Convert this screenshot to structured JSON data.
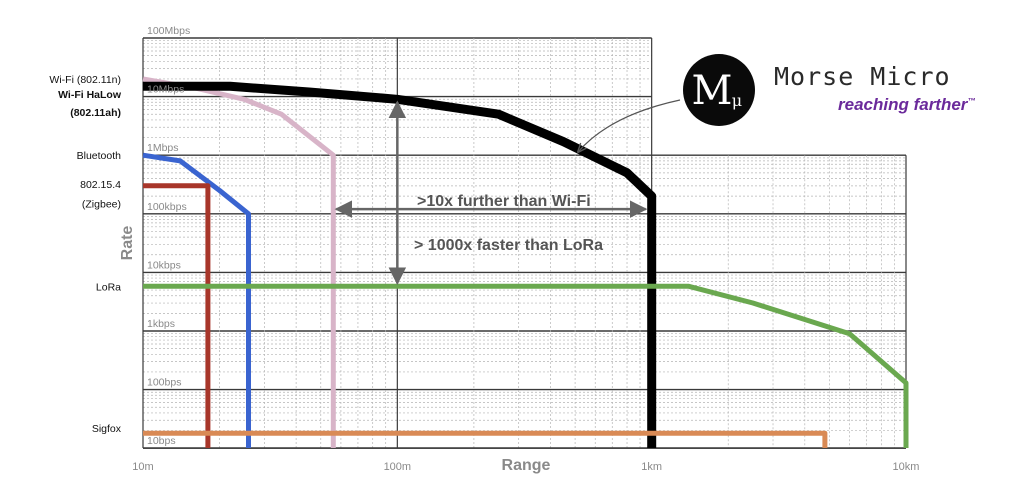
{
  "brand": {
    "logo_text": "M",
    "logo_sub": "μ",
    "name": "Morse Micro",
    "tagline": "reaching farther",
    "tagline_mark": "™",
    "purple": "#6b2a9b"
  },
  "chart_data": {
    "type": "line",
    "x_scale": "log",
    "y_scale": "log",
    "xlabel": "Range",
    "ylabel": "Rate",
    "x_ticks": [
      {
        "value": 10,
        "label": "10m"
      },
      {
        "value": 100,
        "label": "100m"
      },
      {
        "value": 1000,
        "label": "1km"
      },
      {
        "value": 10000,
        "label": "10km"
      }
    ],
    "y_ticks": [
      {
        "value": 100000000,
        "label": "100Mbps"
      },
      {
        "value": 10000000,
        "label": "10Mbps"
      },
      {
        "value": 1000000,
        "label": "1Mbps"
      },
      {
        "value": 100000,
        "label": "100kbps"
      },
      {
        "value": 10000,
        "label": "10kbps"
      },
      {
        "value": 1000,
        "label": "1kbps"
      },
      {
        "value": 100,
        "label": "100bps"
      },
      {
        "value": 10,
        "label": "10bps"
      }
    ],
    "xlim": [
      10,
      10000
    ],
    "ylim": [
      6,
      100000000
    ],
    "grid": true,
    "series": [
      {
        "name": "Wi-Fi (802.11n)",
        "color": "#d8b4c8",
        "width": 5,
        "points": [
          [
            10,
            20000000
          ],
          [
            16,
            14000000
          ],
          [
            25,
            9000000
          ],
          [
            35,
            5000000
          ],
          [
            56,
            1000000
          ],
          [
            56,
            6
          ]
        ]
      },
      {
        "name": "Wi-Fi HaLow (802.11ah)",
        "color": "#000000",
        "width": 9,
        "points": [
          [
            10,
            15000000
          ],
          [
            22,
            15000000
          ],
          [
            45,
            12000000
          ],
          [
            100,
            9000000
          ],
          [
            250,
            5000000
          ],
          [
            450,
            1700000
          ],
          [
            800,
            500000
          ],
          [
            1000,
            200000
          ],
          [
            1000,
            6
          ]
        ]
      },
      {
        "name": "Bluetooth",
        "color": "#3a64d0",
        "width": 5,
        "points": [
          [
            10,
            1000000
          ],
          [
            14,
            800000
          ],
          [
            20,
            250000
          ],
          [
            26,
            100000
          ],
          [
            26,
            6
          ]
        ]
      },
      {
        "name": "802.15.4 (Zigbee)",
        "color": "#a8362a",
        "width": 5,
        "points": [
          [
            10,
            300000
          ],
          [
            18,
            300000
          ],
          [
            18,
            6
          ]
        ]
      },
      {
        "name": "LoRa",
        "color": "#6aa84f",
        "width": 5,
        "points": [
          [
            10,
            5800
          ],
          [
            1400,
            5800
          ],
          [
            2500,
            3000
          ],
          [
            6000,
            900
          ],
          [
            10000,
            130
          ],
          [
            10000,
            6
          ]
        ]
      },
      {
        "name": "Sigfox",
        "color": "#d98a55",
        "width": 5,
        "points": [
          [
            10,
            18
          ],
          [
            4800,
            18
          ],
          [
            4800,
            6
          ]
        ]
      }
    ],
    "legend_labels": [
      {
        "text": "Wi-Fi (802.11n)",
        "bold": false,
        "y": 20000000
      },
      {
        "text": "Wi-Fi HaLow",
        "bold": true,
        "y": 11000000
      },
      {
        "text": "(802.11ah)",
        "bold": true,
        "y": 5500000
      },
      {
        "text": "Bluetooth",
        "bold": false,
        "y": 1000000
      },
      {
        "text": "802.15.4",
        "bold": false,
        "y": 320000
      },
      {
        "text": "(Zigbee)",
        "bold": false,
        "y": 150000
      },
      {
        "text": "LoRa",
        "bold": false,
        "y": 5800
      },
      {
        "text": "Sigfox",
        "bold": false,
        "y": 22
      }
    ],
    "annotations": {
      "range_text": ">10x further than Wi-Fi",
      "range_arrow": {
        "x_from": 56,
        "x_to": 1000,
        "y": 120000
      },
      "rate_text": "> 1000x faster than LoRa",
      "rate_arrow": {
        "x": 100,
        "y_from": 5800,
        "y_to": 9000000
      }
    }
  }
}
